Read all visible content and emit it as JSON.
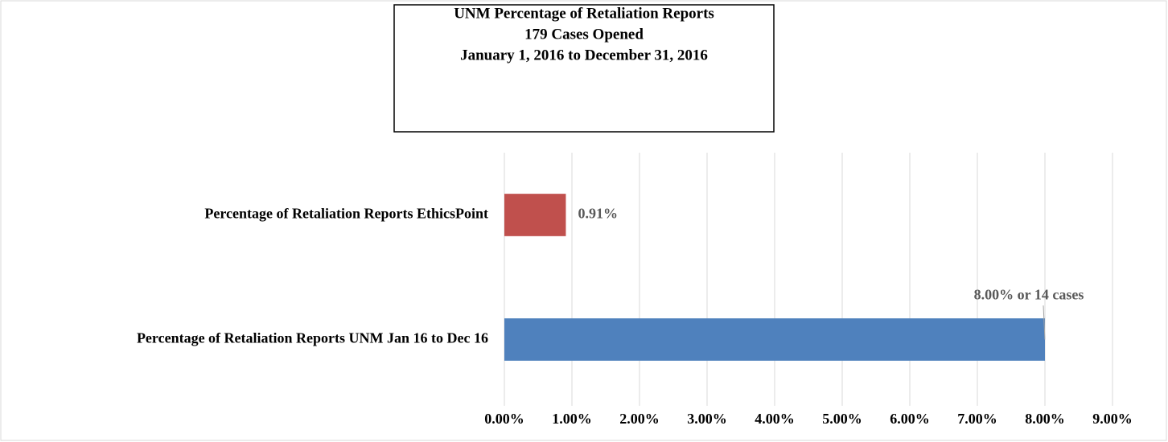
{
  "chart_data": {
    "type": "hbar",
    "title": "UNM Percentage of Retaliation Reports",
    "subtitle": [
      "179 Cases Opened",
      "January 1, 2016 to December 31, 2016"
    ],
    "categories": [
      "Percentage of Retaliation Reports EthicsPoint",
      "Percentage of Retaliation Reports UNM Jan 16 to Dec 16"
    ],
    "values": [
      0.91,
      8.0
    ],
    "value_labels": [
      "0.91%",
      "8.00% or 14 cases"
    ],
    "colors": [
      "#c0504d",
      "#4f81bd"
    ],
    "xlim": [
      0,
      9
    ],
    "xticks": [
      {
        "value": 0,
        "label": "0.00%"
      },
      {
        "value": 1,
        "label": "1.00%"
      },
      {
        "value": 2,
        "label": "2.00%"
      },
      {
        "value": 3,
        "label": "3.00%"
      },
      {
        "value": 4,
        "label": "4.00%"
      },
      {
        "value": 5,
        "label": "5.00%"
      },
      {
        "value": 6,
        "label": "6.00%"
      },
      {
        "value": 7,
        "label": "7.00%"
      },
      {
        "value": 8,
        "label": "8.00%"
      },
      {
        "value": 9,
        "label": "9.00%"
      }
    ],
    "grid": true
  }
}
